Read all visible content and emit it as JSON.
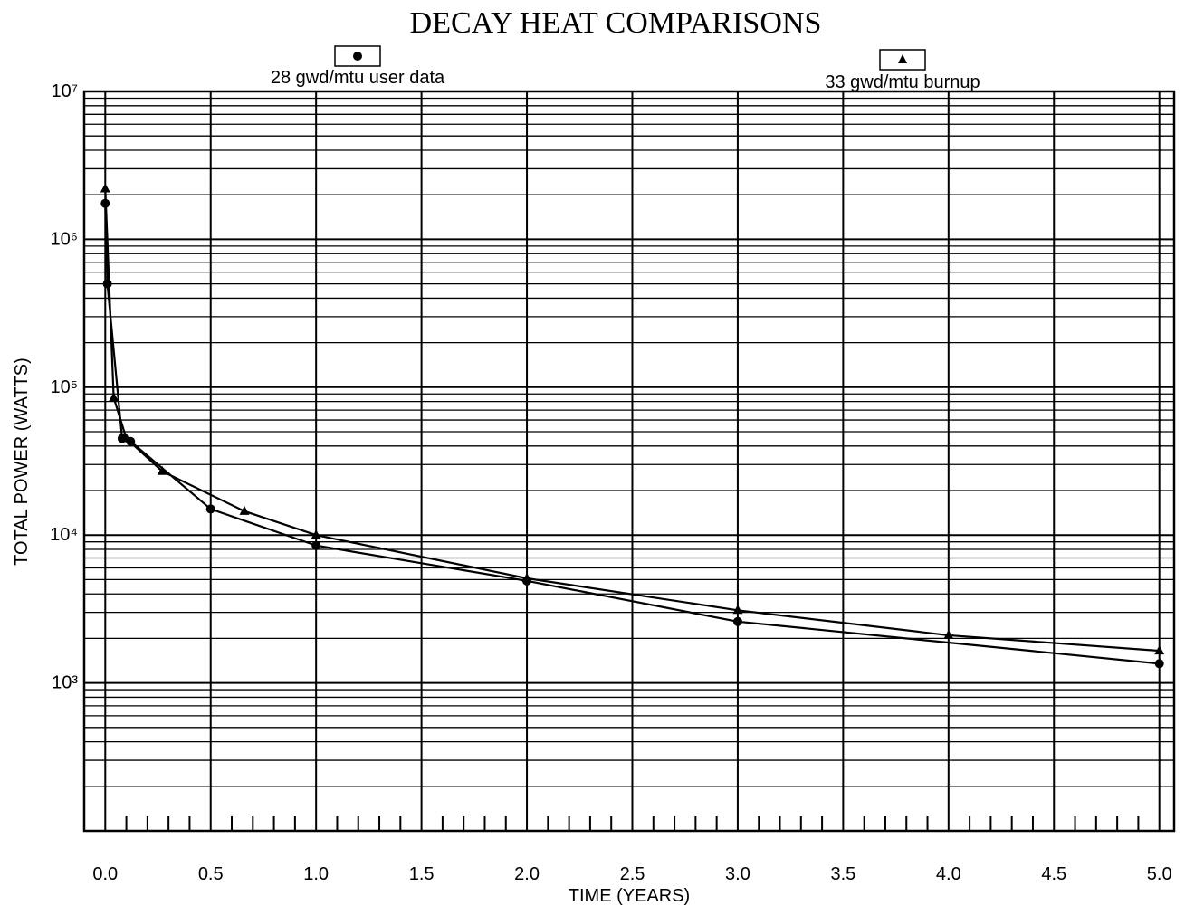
{
  "chart_data": {
    "type": "line",
    "title": "DECAY HEAT COMPARISONS",
    "xlabel": "TIME (YEARS)",
    "ylabel": "TOTAL POWER (WATTS)",
    "log_y": true,
    "grid": true,
    "xlim": [
      -0.1,
      5.07
    ],
    "ylim": [
      100,
      10000000
    ],
    "xticks": [
      {
        "value": 0,
        "label": "0.0"
      },
      0.5,
      {
        "value": 1,
        "label": "1.0"
      },
      1.5,
      {
        "value": 2,
        "label": "2.0"
      },
      2.5,
      {
        "value": 3,
        "label": "3.0"
      },
      3.5,
      {
        "value": 4,
        "label": "4.0"
      },
      4.5,
      {
        "value": 5,
        "label": "5.0"
      }
    ],
    "xminor_ticks": [
      0.1,
      0.2,
      0.3,
      0.4,
      0.6,
      0.7,
      0.8,
      0.9,
      1.1,
      1.2,
      1.3,
      1.4,
      1.6,
      1.7,
      1.8,
      1.9,
      2.1,
      2.2,
      2.3,
      2.4,
      2.6,
      2.7,
      2.8,
      2.9,
      3.1,
      3.2,
      3.3,
      3.4,
      3.6,
      3.7,
      3.8,
      3.9,
      4.1,
      4.2,
      4.3,
      4.4,
      4.6,
      4.7,
      4.8,
      4.9
    ],
    "yticks": [
      {
        "value": 1000,
        "label": "10³"
      },
      {
        "value": 10000,
        "label": "10⁴"
      },
      {
        "value": 100000,
        "label": "10⁵"
      },
      {
        "value": 1000000,
        "label": "10⁶"
      },
      {
        "value": 10000000,
        "label": "10⁷"
      }
    ],
    "yminor_ticks": [
      100,
      200,
      300,
      400,
      500,
      600,
      700,
      800,
      900,
      2000,
      3000,
      4000,
      5000,
      6000,
      7000,
      8000,
      9000,
      20000,
      30000,
      40000,
      50000,
      60000,
      70000,
      80000,
      90000,
      200000,
      300000,
      400000,
      500000,
      600000,
      700000,
      800000,
      900000,
      2000000,
      3000000,
      4000000,
      5000000,
      6000000,
      7000000,
      8000000,
      9000000
    ],
    "series": [
      {
        "name": "28 gwd/mtu user data",
        "color": "#000000",
        "marker": "circle",
        "x": [
          0.0,
          0.01,
          0.08,
          0.12,
          0.5,
          1.0,
          2.0,
          3.0,
          5.0
        ],
        "values": [
          1750000,
          500000,
          45000,
          43000,
          15000,
          8500,
          4900,
          2600,
          1350
        ]
      },
      {
        "name": "33 gwd/mtu burnup",
        "color": "#000000",
        "marker": "triangle",
        "x": [
          0.0,
          0.04,
          0.1,
          0.27,
          0.66,
          1.0,
          2.0,
          3.0,
          4.0,
          5.0
        ],
        "values": [
          2200000,
          85000,
          45000,
          27000,
          14500,
          10000,
          5100,
          3100,
          2100,
          1650
        ]
      }
    ]
  }
}
